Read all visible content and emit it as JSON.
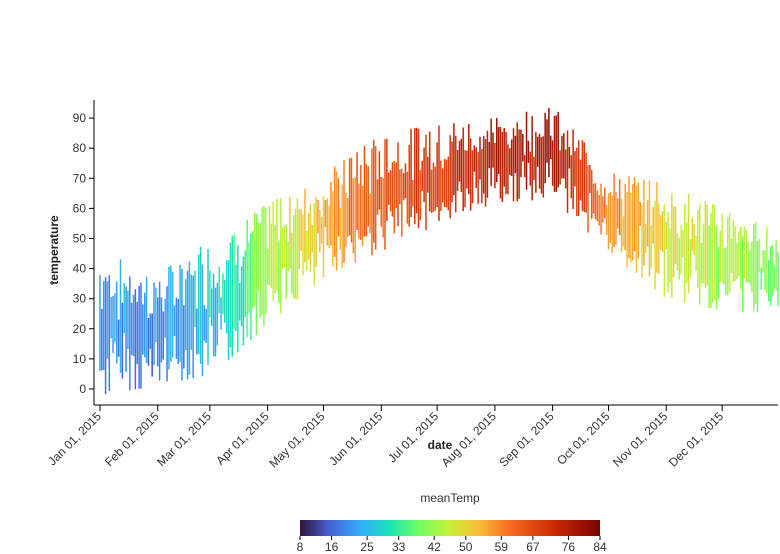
{
  "chart_data": {
    "type": "bar",
    "subtype": "range-bar (daily min-max temperature)",
    "xlabel": "date",
    "ylabel": "temperature",
    "x_ticks": [
      "Jan 01, 2015",
      "Feb 01, 2015",
      "Mar 01, 2015",
      "Apr 01, 2015",
      "May 01, 2015",
      "Jun 01, 2015",
      "Jul 01, 2015",
      "Aug 01, 2015",
      "Sep 01, 2015",
      "Oct 01, 2015",
      "Nov 01, 2015",
      "Dec 01, 2015"
    ],
    "xlim": [
      "2015-01-01",
      "2015-12-31"
    ],
    "y_ticks": [
      0,
      10,
      20,
      30,
      40,
      50,
      60,
      70,
      80,
      90
    ],
    "ylim": [
      -3,
      96
    ],
    "grid": false,
    "color_legend": {
      "title": "meanTemp",
      "ticks": [
        "8",
        "16",
        "25",
        "33",
        "42",
        "50",
        "59",
        "67",
        "76",
        "84"
      ],
      "range": [
        8,
        84
      ],
      "colormap": "turbo",
      "placement": "bottom-center"
    },
    "monthly_low": [
      -2,
      1,
      5,
      22,
      38,
      46,
      55,
      62,
      63,
      45,
      30,
      26,
      25
    ],
    "monthly_high": [
      46,
      38,
      50,
      62,
      72,
      85,
      88,
      90,
      94,
      72,
      68,
      60,
      52
    ]
  }
}
